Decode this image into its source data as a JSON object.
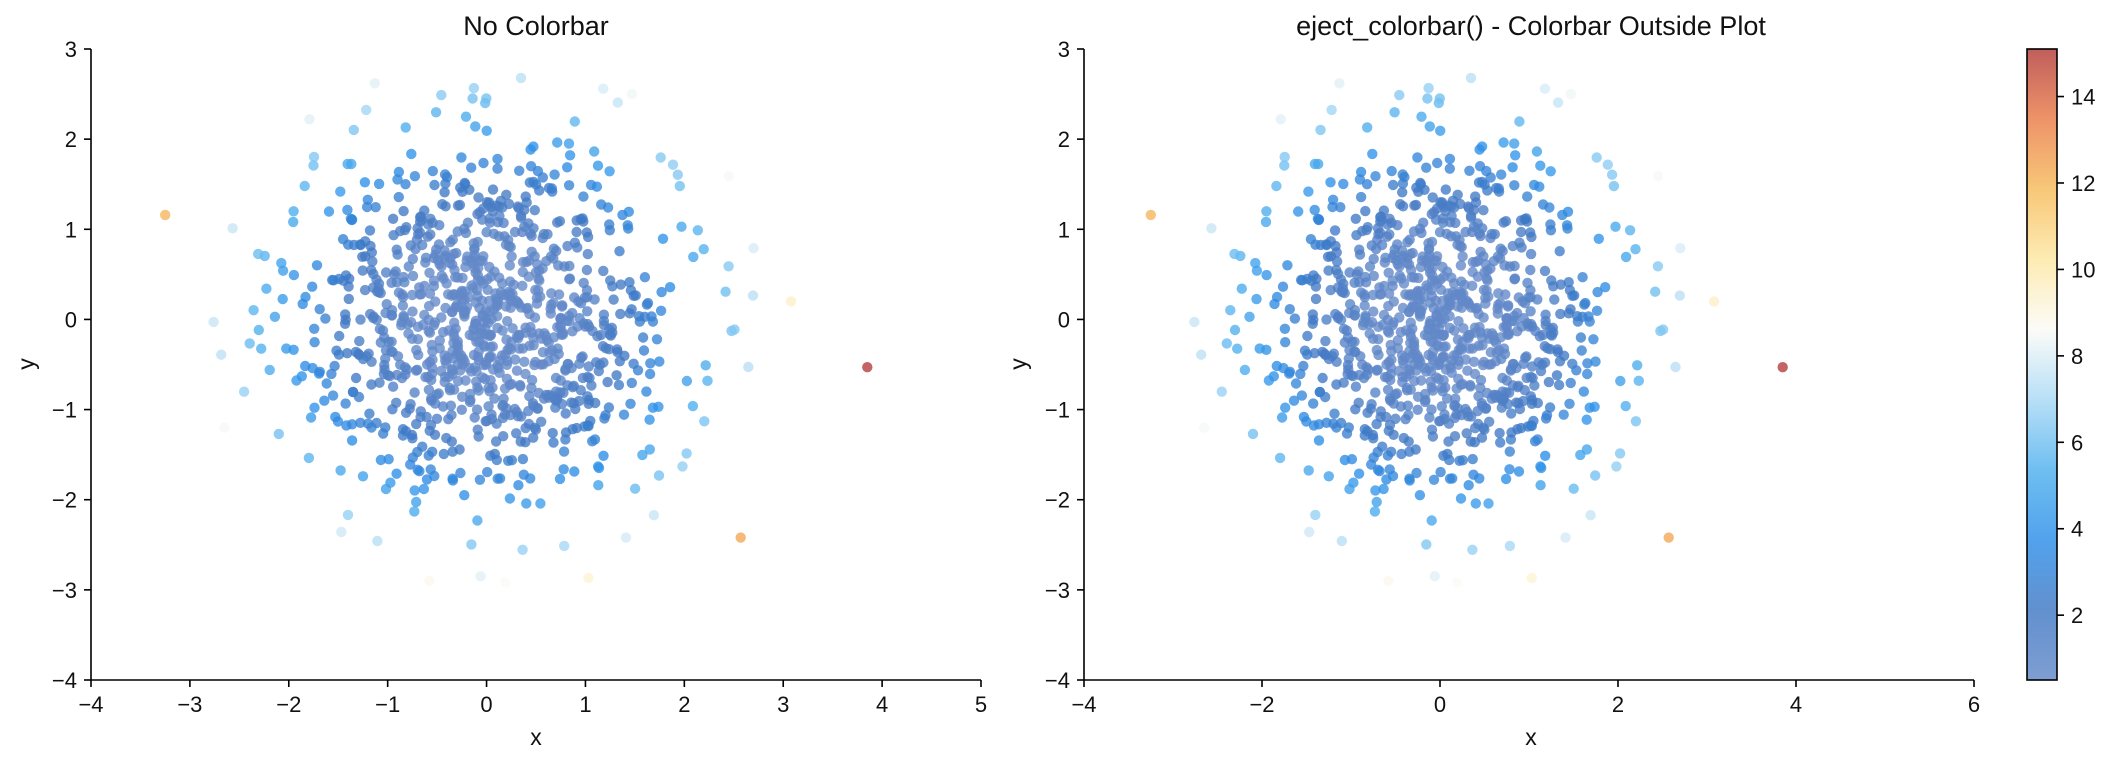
{
  "colors": {
    "spine": "#000000",
    "colormap": [
      "#6288c8",
      "#3f78c4",
      "#2b8ee8",
      "#4fb0ee",
      "#a8d8f5",
      "#fbfbf6",
      "#fde7a2",
      "#f6bb5a",
      "#ea7b47",
      "#b23a38"
    ]
  },
  "chart_data": [
    {
      "type": "scatter",
      "title": "No Colorbar",
      "xlabel": "x",
      "ylabel": "y",
      "xlim": [
        -4,
        5
      ],
      "ylim": [
        -4,
        3
      ],
      "xticks": [
        "−4",
        "−3",
        "−2",
        "−1",
        "0",
        "1",
        "2",
        "3",
        "4",
        "5"
      ],
      "yticks": [
        "−4",
        "−3",
        "−2",
        "−1",
        "0",
        "1",
        "2",
        "3"
      ],
      "grid": false,
      "note_points": "approximately 1000 points, x and y roughly standard normal; color value = x^2 + y^2",
      "points": [
        {
          "x": -3.25,
          "y": 1.16,
          "c": 12.0
        },
        {
          "x": 3.85,
          "y": -0.53,
          "c": 15.1
        },
        {
          "x": 2.57,
          "y": -2.42,
          "c": 12.4
        },
        {
          "x": 3.08,
          "y": 0.2,
          "c": 9.5
        },
        {
          "x": 2.45,
          "y": 1.59,
          "c": 8.5
        },
        {
          "x": -2.65,
          "y": -1.2,
          "c": 8.5
        },
        {
          "x": -0.58,
          "y": -2.9,
          "c": 8.8
        },
        {
          "x": 0.19,
          "y": -2.92,
          "c": 8.6
        },
        {
          "x": 1.03,
          "y": -2.87,
          "c": 9.3
        },
        {
          "x": 1.47,
          "y": 2.5,
          "c": 8.4
        },
        {
          "x": -0.06,
          "y": -2.85,
          "c": 8.1
        },
        {
          "x": -1.13,
          "y": 2.62,
          "c": 8.1
        },
        {
          "x": 1.18,
          "y": 2.56,
          "c": 7.9
        },
        {
          "x": 2.7,
          "y": 0.79,
          "c": 7.9
        },
        {
          "x": -1.79,
          "y": 2.22,
          "c": 8.1
        },
        {
          "x": 1.41,
          "y": -2.42,
          "c": 7.8
        }
      ]
    },
    {
      "type": "scatter",
      "title": "eject_colorbar() - Colorbar Outside Plot",
      "xlabel": "x",
      "ylabel": "y",
      "xlim": [
        -4,
        6
      ],
      "ylim": [
        -4,
        3
      ],
      "xticks": [
        "−4",
        "−2",
        "0",
        "2",
        "4",
        "6"
      ],
      "yticks": [
        "−4",
        "−3",
        "−2",
        "−1",
        "0",
        "1",
        "2",
        "3"
      ],
      "grid": false,
      "colorbar": {
        "placement": "right, outside plot",
        "range": [
          0.5,
          15.1
        ],
        "ticks": [
          "2",
          "4",
          "6",
          "8",
          "10",
          "12",
          "14"
        ]
      },
      "note_points": "same data as the left panel"
    }
  ]
}
